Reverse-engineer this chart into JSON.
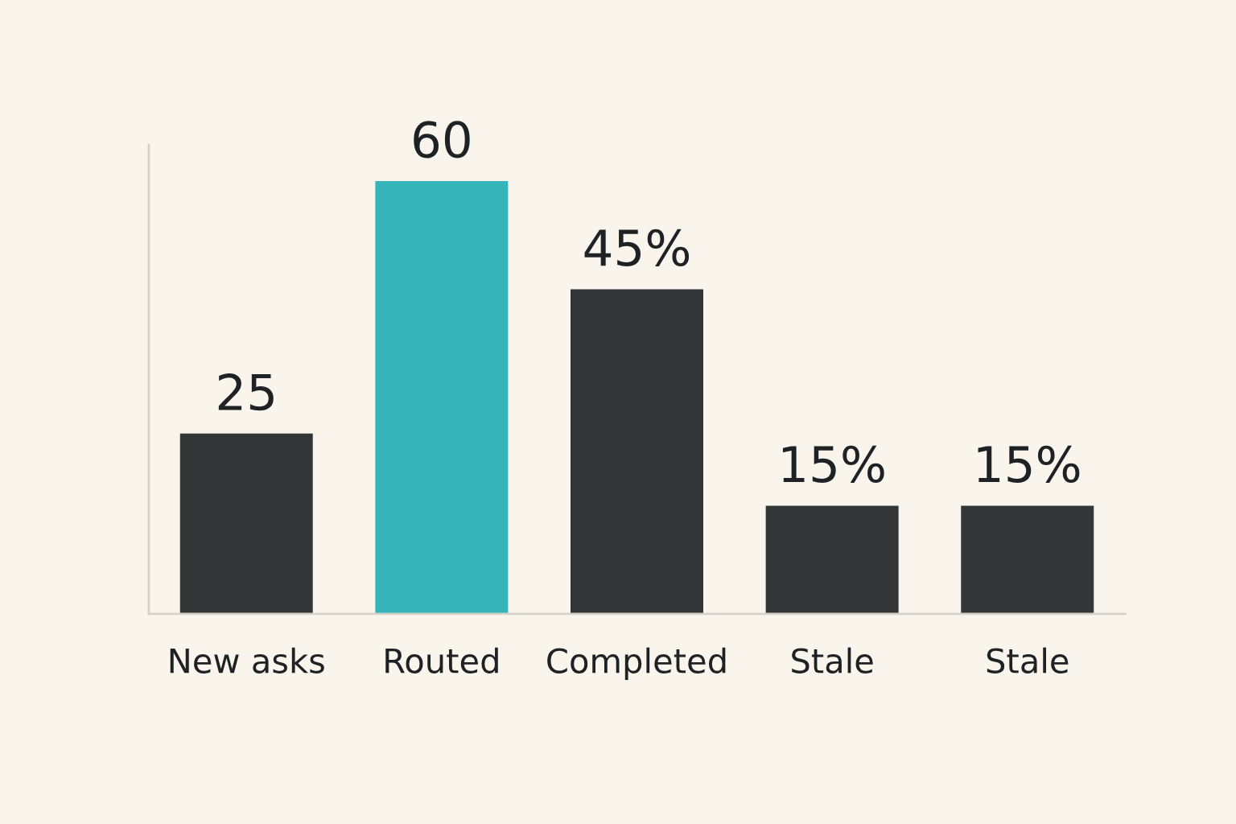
{
  "chart_data": {
    "type": "bar",
    "categories": [
      "New asks",
      "Routed",
      "Completed",
      "Stale",
      "Stale"
    ],
    "values": [
      25,
      60,
      45,
      15,
      15
    ],
    "colors": [
      "#333637",
      "#35b4ba",
      "#333637",
      "#333637",
      "#333637"
    ],
    "value_labels": [
      "25",
      "60",
      "45%",
      "15%",
      "15%"
    ],
    "ylim": [
      0,
      65
    ],
    "tick_labels": "x",
    "grid": false,
    "legend": false
  }
}
